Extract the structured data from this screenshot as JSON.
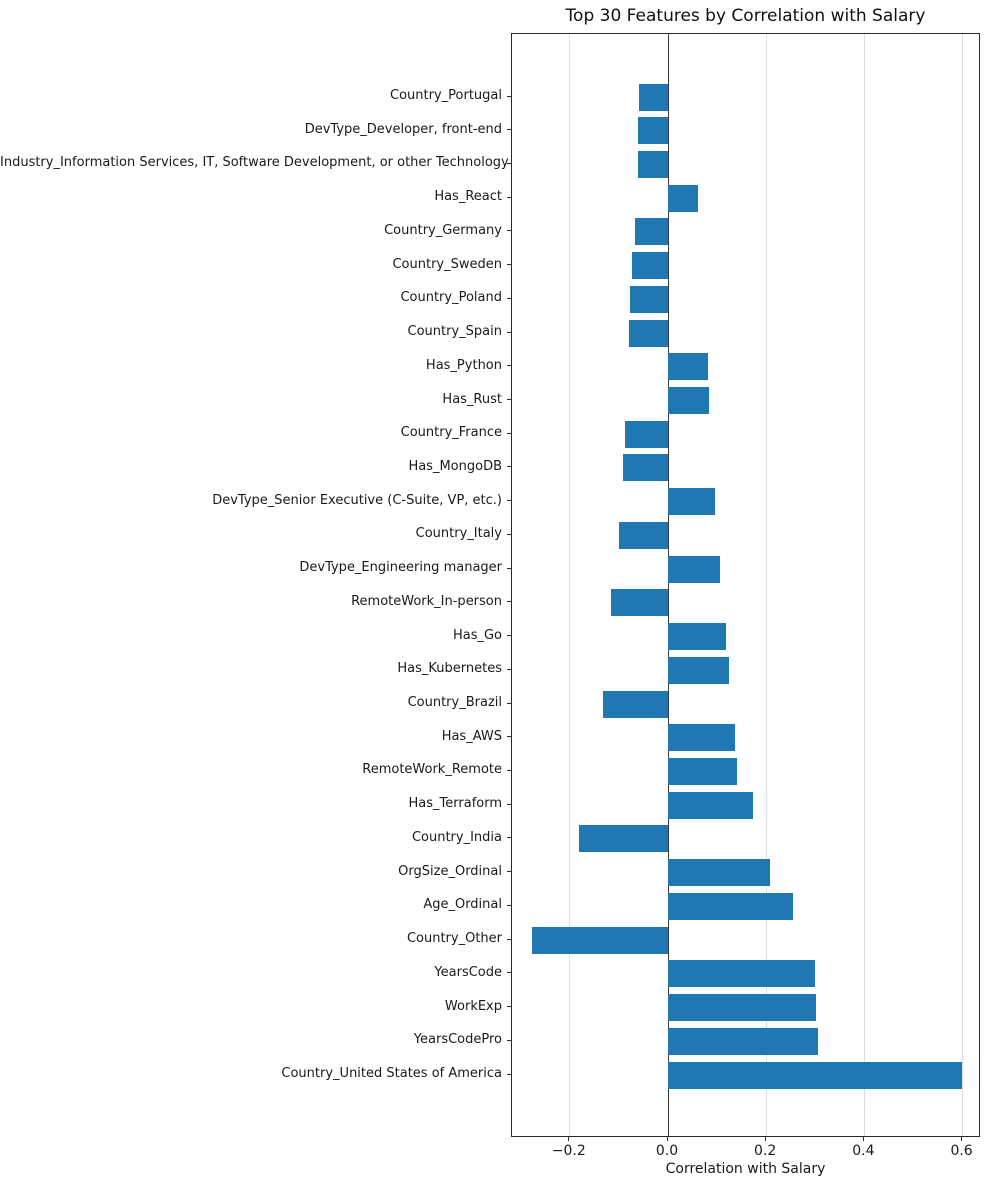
{
  "chart_data": {
    "type": "bar",
    "orientation": "horizontal",
    "title": "Top 30 Features by Correlation with Salary",
    "xlabel": "Correlation with Salary",
    "ylabel": "",
    "bar_color": "#1f77b4",
    "grid": true,
    "legend": "none",
    "xlim": [
      -0.318,
      0.637
    ],
    "xticks": [
      -0.2,
      0.0,
      0.2,
      0.4,
      0.6
    ],
    "xtick_labels": [
      "−0.2",
      "0.0",
      "0.2",
      "0.4",
      "0.6"
    ],
    "categories": [
      "Country_Portugal",
      "DevType_Developer, front-end",
      "Industry_Information Services, IT, Software Development, or other Technology",
      "Has_React",
      "Country_Germany",
      "Country_Sweden",
      "Country_Poland",
      "Country_Spain",
      "Has_Python",
      "Has_Rust",
      "Country_France",
      "Has_MongoDB",
      "DevType_Senior Executive (C-Suite, VP, etc.)",
      "Country_Italy",
      "DevType_Engineering manager",
      "RemoteWork_In-person",
      "Has_Go",
      "Has_Kubernetes",
      "Country_Brazil",
      "Has_AWS",
      "RemoteWork_Remote",
      "Has_Terraform",
      "Country_India",
      "OrgSize_Ordinal",
      "Age_Ordinal",
      "Country_Other",
      "YearsCode",
      "WorkExp",
      "YearsCodePro",
      "Country_United States of America"
    ],
    "values": [
      -0.06,
      -0.061,
      -0.062,
      0.062,
      -0.067,
      -0.073,
      -0.077,
      -0.079,
      0.082,
      0.084,
      -0.088,
      -0.092,
      0.096,
      -0.1,
      0.105,
      -0.117,
      0.118,
      0.124,
      -0.132,
      0.136,
      0.141,
      0.173,
      -0.181,
      0.208,
      0.255,
      -0.277,
      0.299,
      0.302,
      0.305,
      0.598
    ]
  }
}
